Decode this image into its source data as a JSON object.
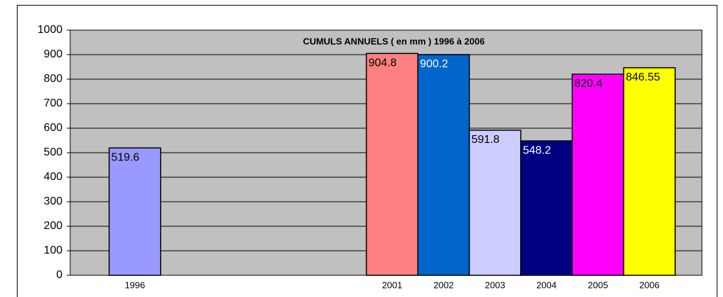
{
  "chart_data": {
    "type": "bar",
    "title": "CUMULS ANNUELS ( en mm ) 1996 à 2006",
    "categories": [
      "1996",
      null,
      null,
      null,
      null,
      "2001",
      "2002",
      "2003",
      "2004",
      "2005",
      "2006"
    ],
    "values": [
      519.6,
      null,
      null,
      null,
      null,
      904.8,
      900.2,
      591.8,
      548.2,
      820.4,
      846.55
    ],
    "colors": [
      "#9999ff",
      null,
      null,
      null,
      null,
      "#ff8080",
      "#0066cc",
      "#ccccff",
      "#000080",
      "#ff00ff",
      "#ffff00"
    ],
    "label_colors": [
      "#000000",
      null,
      null,
      null,
      null,
      "#000000",
      "#ffffff",
      "#000000",
      "#ffffff",
      "#000000",
      "#000000"
    ],
    "ylim": [
      0,
      1000
    ],
    "yticks": [
      0,
      100,
      200,
      300,
      400,
      500,
      600,
      700,
      800,
      900,
      1000
    ],
    "grid": true
  }
}
